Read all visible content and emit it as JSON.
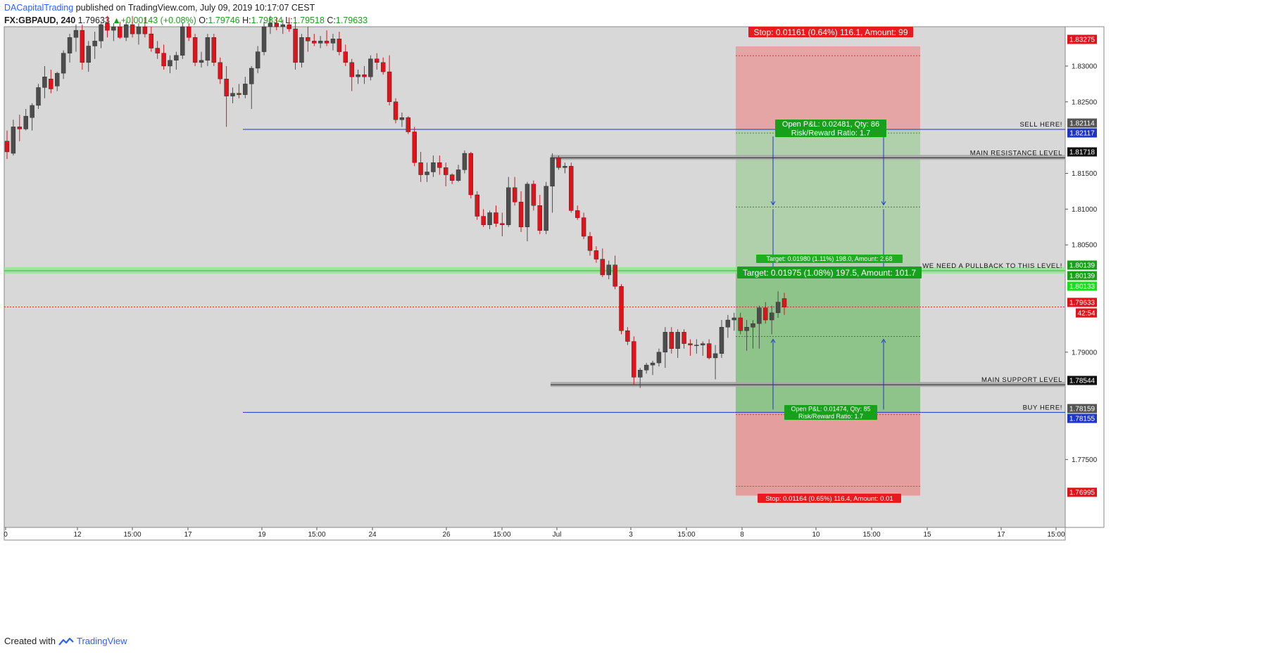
{
  "header": {
    "line1_author": "DACapitalTrading",
    "line1_rest": " published on TradingView.com, July 09, 2019 10:17:07 CEST",
    "symbol": "FX:GBPAUD, 240",
    "last": "1.79633",
    "arrow": "▲",
    "change": "+0.00143 (+0.08%)",
    "o_label": "O:",
    "o_value": "1.79746",
    "h_label": "H:",
    "h_value": "1.79834",
    "l_label": "L:",
    "l_value": "1.79518",
    "c_label": "C:",
    "c_value": "1.79633"
  },
  "footer": {
    "created_with": "Created with",
    "brand": "TradingView"
  },
  "colors": {
    "plot_bg": "#d8d8d8",
    "bull": "#4d4d4d",
    "bear": "#e0121a",
    "stop_zone": "#ee9a9a",
    "target_zone": "#8fc98f",
    "support_band": "#a8a8a8",
    "blue_line": "#1f35c8",
    "pullback_band": "#8ee58e",
    "price_line": "#e0121a"
  },
  "chart_data": {
    "type": "candlestick",
    "symbol": "FX:GBPAUD",
    "timeframe": "240",
    "ylim": [
      1.7655,
      1.8355
    ],
    "y_ticks": [
      "1.83000",
      "1.82500",
      "1.81500",
      "1.81000",
      "1.80500",
      "1.79000",
      "1.77500"
    ],
    "x_ticks": [
      "0",
      "12",
      "15:00",
      "17",
      "19",
      "15:00",
      "24",
      "26",
      "15:00",
      "Jul",
      "3",
      "15:00",
      "8",
      "10",
      "15:00",
      "15",
      "17",
      "15:00"
    ],
    "candles": [
      [
        1.8195,
        1.821,
        1.817,
        1.818
      ],
      [
        1.8178,
        1.8225,
        1.8175,
        1.8215
      ],
      [
        1.8215,
        1.8232,
        1.8195,
        1.8212
      ],
      [
        1.8212,
        1.824,
        1.821,
        1.823
      ],
      [
        1.8228,
        1.8248,
        1.821,
        1.8245
      ],
      [
        1.8245,
        1.8275,
        1.824,
        1.827
      ],
      [
        1.827,
        1.83,
        1.8255,
        1.8285
      ],
      [
        1.8282,
        1.8295,
        1.8262,
        1.8268
      ],
      [
        1.8272,
        1.8292,
        1.8265,
        1.829
      ],
      [
        1.829,
        1.8322,
        1.8282,
        1.8318
      ],
      [
        1.8318,
        1.8345,
        1.8305,
        1.834
      ],
      [
        1.834,
        1.8358,
        1.832,
        1.835
      ],
      [
        1.835,
        1.8358,
        1.8295,
        1.8305
      ],
      [
        1.8305,
        1.8335,
        1.8292,
        1.8328
      ],
      [
        1.8328,
        1.8348,
        1.831,
        1.8335
      ],
      [
        1.8335,
        1.836,
        1.8325,
        1.8358
      ],
      [
        1.836,
        1.837,
        1.834,
        1.835
      ],
      [
        1.835,
        1.836,
        1.8335,
        1.8355
      ],
      [
        1.8355,
        1.8362,
        1.8338,
        1.834
      ],
      [
        1.834,
        1.8362,
        1.8335,
        1.8358
      ],
      [
        1.8358,
        1.837,
        1.834,
        1.8345
      ],
      [
        1.8345,
        1.836,
        1.833,
        1.8355
      ],
      [
        1.8355,
        1.8368,
        1.834,
        1.8345
      ],
      [
        1.8345,
        1.8355,
        1.832,
        1.8325
      ],
      [
        1.8325,
        1.8335,
        1.831,
        1.8318
      ],
      [
        1.8318,
        1.833,
        1.8295,
        1.83
      ],
      [
        1.83,
        1.8315,
        1.829,
        1.8308
      ],
      [
        1.8308,
        1.832,
        1.8295,
        1.8315
      ],
      [
        1.8315,
        1.836,
        1.831,
        1.8355
      ],
      [
        1.8355,
        1.836,
        1.8335,
        1.834
      ],
      [
        1.834,
        1.8345,
        1.83,
        1.8305
      ],
      [
        1.8305,
        1.832,
        1.8298,
        1.8308
      ],
      [
        1.8308,
        1.8345,
        1.83,
        1.834
      ],
      [
        1.834,
        1.8345,
        1.83,
        1.8305
      ],
      [
        1.8305,
        1.8312,
        1.8275,
        1.8282
      ],
      [
        1.8282,
        1.83,
        1.8215,
        1.8258
      ],
      [
        1.8258,
        1.827,
        1.8248,
        1.8262
      ],
      [
        1.8262,
        1.8275,
        1.8255,
        1.826
      ],
      [
        1.826,
        1.8285,
        1.8255,
        1.8275
      ],
      [
        1.8275,
        1.83,
        1.824,
        1.8297
      ],
      [
        1.8297,
        1.8328,
        1.829,
        1.832
      ],
      [
        1.832,
        1.8362,
        1.8315,
        1.8355
      ],
      [
        1.8355,
        1.837,
        1.8345,
        1.836
      ],
      [
        1.836,
        1.8368,
        1.835,
        1.8355
      ],
      [
        1.8355,
        1.8365,
        1.8345,
        1.8358
      ],
      [
        1.8358,
        1.8368,
        1.8348,
        1.8352
      ],
      [
        1.8352,
        1.836,
        1.8295,
        1.8305
      ],
      [
        1.8305,
        1.8345,
        1.8298,
        1.834
      ],
      [
        1.834,
        1.8355,
        1.832,
        1.8335
      ],
      [
        1.8335,
        1.8345,
        1.8328,
        1.8332
      ],
      [
        1.8332,
        1.8342,
        1.8325,
        1.8335
      ],
      [
        1.8335,
        1.835,
        1.8328,
        1.8332
      ],
      [
        1.8332,
        1.8345,
        1.8322,
        1.8338
      ],
      [
        1.8338,
        1.8348,
        1.8315,
        1.832
      ],
      [
        1.832,
        1.833,
        1.83,
        1.8305
      ],
      [
        1.8305,
        1.831,
        1.8265,
        1.8285
      ],
      [
        1.8285,
        1.8295,
        1.8275,
        1.8288
      ],
      [
        1.8288,
        1.83,
        1.8275,
        1.8285
      ],
      [
        1.8285,
        1.8315,
        1.828,
        1.831
      ],
      [
        1.831,
        1.8318,
        1.8295,
        1.8305
      ],
      [
        1.8305,
        1.8312,
        1.8288,
        1.8292
      ],
      [
        1.8292,
        1.8315,
        1.8245,
        1.825
      ],
      [
        1.825,
        1.8255,
        1.822,
        1.8225
      ],
      [
        1.8225,
        1.8235,
        1.8215,
        1.8228
      ],
      [
        1.8228,
        1.823,
        1.8205,
        1.8208
      ],
      [
        1.8208,
        1.8215,
        1.816,
        1.8165
      ],
      [
        1.8165,
        1.818,
        1.8138,
        1.8148
      ],
      [
        1.8148,
        1.8165,
        1.8138,
        1.8152
      ],
      [
        1.8152,
        1.8175,
        1.8145,
        1.8165
      ],
      [
        1.8165,
        1.8175,
        1.8148,
        1.8158
      ],
      [
        1.8158,
        1.8165,
        1.8132,
        1.8148
      ],
      [
        1.8148,
        1.815,
        1.8135,
        1.814
      ],
      [
        1.814,
        1.8162,
        1.8138,
        1.8155
      ],
      [
        1.8155,
        1.8182,
        1.815,
        1.8178
      ],
      [
        1.8178,
        1.818,
        1.8115,
        1.812
      ],
      [
        1.812,
        1.8125,
        1.8085,
        1.809
      ],
      [
        1.809,
        1.81,
        1.8075,
        1.8078
      ],
      [
        1.8078,
        1.8098,
        1.8072,
        1.8095
      ],
      [
        1.8095,
        1.8105,
        1.8075,
        1.808
      ],
      [
        1.808,
        1.8095,
        1.8062,
        1.8078
      ],
      [
        1.8078,
        1.8145,
        1.8075,
        1.813
      ],
      [
        1.813,
        1.8145,
        1.8105,
        1.811
      ],
      [
        1.811,
        1.8125,
        1.8068,
        1.8075
      ],
      [
        1.8075,
        1.8138,
        1.8055,
        1.8135
      ],
      [
        1.8135,
        1.814,
        1.8098,
        1.8105
      ],
      [
        1.8105,
        1.812,
        1.8065,
        1.807
      ],
      [
        1.807,
        1.8138,
        1.8065,
        1.8132
      ],
      [
        1.8132,
        1.8178,
        1.8095,
        1.8172
      ],
      [
        1.8172,
        1.8175,
        1.8155,
        1.8158
      ],
      [
        1.8158,
        1.8165,
        1.815,
        1.816
      ],
      [
        1.816,
        1.8165,
        1.8095,
        1.8098
      ],
      [
        1.8098,
        1.8105,
        1.8085,
        1.8088
      ],
      [
        1.8088,
        1.8095,
        1.8058,
        1.8062
      ],
      [
        1.8062,
        1.8068,
        1.8035,
        1.8042
      ],
      [
        1.8042,
        1.8048,
        1.8025,
        1.803
      ],
      [
        1.803,
        1.8045,
        1.8005,
        1.8008
      ],
      [
        1.8008,
        1.8028,
        1.8002,
        1.8022
      ],
      [
        1.8022,
        1.8035,
        1.7988,
        1.7992
      ],
      [
        1.7992,
        1.7995,
        1.7925,
        1.793
      ],
      [
        1.793,
        1.7935,
        1.791,
        1.7915
      ],
      [
        1.7915,
        1.7922,
        1.7855,
        1.7865
      ],
      [
        1.7865,
        1.7878,
        1.785,
        1.7875
      ],
      [
        1.7875,
        1.7885,
        1.787,
        1.7882
      ],
      [
        1.7882,
        1.7888,
        1.7868,
        1.7885
      ],
      [
        1.7885,
        1.7905,
        1.788,
        1.79
      ],
      [
        1.79,
        1.7935,
        1.7878,
        1.7928
      ],
      [
        1.7928,
        1.7935,
        1.7898,
        1.7905
      ],
      [
        1.7905,
        1.7932,
        1.7892,
        1.7928
      ],
      [
        1.7928,
        1.7932,
        1.7905,
        1.7912
      ],
      [
        1.7912,
        1.7918,
        1.7895,
        1.791
      ],
      [
        1.791,
        1.7918,
        1.7898,
        1.791
      ],
      [
        1.791,
        1.7915,
        1.7895,
        1.7912
      ],
      [
        1.7912,
        1.7918,
        1.789,
        1.7892
      ],
      [
        1.7892,
        1.791,
        1.7862,
        1.7898
      ],
      [
        1.7898,
        1.7945,
        1.7892,
        1.7935
      ],
      [
        1.7935,
        1.7952,
        1.792,
        1.7945
      ],
      [
        1.7945,
        1.7955,
        1.793,
        1.7948
      ],
      [
        1.7948,
        1.7955,
        1.7925,
        1.793
      ],
      [
        1.793,
        1.7945,
        1.7902,
        1.7935
      ],
      [
        1.7935,
        1.7945,
        1.7905,
        1.794
      ],
      [
        1.794,
        1.7965,
        1.7905,
        1.7962
      ],
      [
        1.7962,
        1.797,
        1.794,
        1.7945
      ],
      [
        1.7945,
        1.7965,
        1.7925,
        1.7955
      ],
      [
        1.7955,
        1.7985,
        1.7948,
        1.797
      ],
      [
        1.7975,
        1.7983,
        1.7952,
        1.7963
      ]
    ],
    "horizontal_levels": [
      {
        "label": "SELL HERE!",
        "price": 1.82114
      },
      {
        "label": "MAIN RESISTANCE LEVEL",
        "price": 1.81718
      },
      {
        "label": "WE NEED A PULLBACK TO THIS LEVEL!",
        "price": 1.80139
      },
      {
        "label": "MAIN SUPPORT LEVEL",
        "price": 1.78544
      },
      {
        "label": "BUY HERE!",
        "price": 1.78159
      }
    ],
    "positions": {
      "short": {
        "entry": 1.82114,
        "stop": 1.83275,
        "target": 1.80139,
        "stop_label": "Stop: 0.01161 (0.64%) 116.1, Amount: 99",
        "target_label": "Target: 0.01975 (1.08%) 197.5, Amount: 101.7",
        "pnl_label_1": "Open P&L: 0.02481, Qty: 86",
        "pnl_label_2": "Risk/Reward Ratio: 1.7"
      },
      "long": {
        "entry": 1.78159,
        "stop": 1.76995,
        "target": 1.80139,
        "stop_label": "Stop: 0.01164 (0.65%) 116.4, Amount: 0.01",
        "target_label": "Target: 0.01980 (1.11%) 198.0, Amount: 2.68",
        "pnl_label_1": "Open P&L: 0.01474, Qty: 85",
        "pnl_label_2": "Risk/Reward Ratio: 1.7"
      }
    },
    "price_tags": [
      {
        "text": "1.83275",
        "price": 1.83275,
        "bg": "#e0121a",
        "fg": "#ffffff"
      },
      {
        "text": "1.82114",
        "price": 1.82114,
        "bg": "#555555",
        "fg": "#ffffff"
      },
      {
        "text": "1.82117",
        "price": 1.82117,
        "bg": "#1f35c8",
        "fg": "#ffffff"
      },
      {
        "text": "1.81718",
        "price": 1.81718,
        "bg": "#111111",
        "fg": "#ffffff"
      },
      {
        "text": "1.80139",
        "price": 1.80139,
        "bg": "#18a018",
        "fg": "#ffffff"
      },
      {
        "text": "1.80139",
        "price": 1.80139,
        "bg": "#18a018",
        "fg": "#ffffff"
      },
      {
        "text": "1.80133",
        "price": 1.80133,
        "bg": "#18e018",
        "fg": "#ffffff"
      },
      {
        "text": "1.79633",
        "price": 1.79633,
        "bg": "#e0121a",
        "fg": "#ffffff"
      },
      {
        "text": "42:54",
        "price": 1.79633,
        "bg": "#e0121a",
        "fg": "#ffffff"
      },
      {
        "text": "1.78544",
        "price": 1.78544,
        "bg": "#111111",
        "fg": "#ffffff"
      },
      {
        "text": "1.78159",
        "price": 1.78159,
        "bg": "#555555",
        "fg": "#ffffff"
      },
      {
        "text": "1.78155",
        "price": 1.78155,
        "bg": "#1f35c8",
        "fg": "#ffffff"
      },
      {
        "text": "1.76995",
        "price": 1.76995,
        "bg": "#e0121a",
        "fg": "#ffffff"
      }
    ],
    "current_price": 1.79633
  }
}
